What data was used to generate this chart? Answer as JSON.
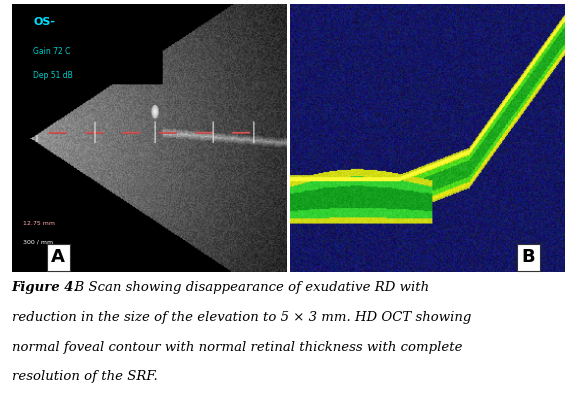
{
  "figure_width": 5.77,
  "figure_height": 3.94,
  "dpi": 100,
  "caption_line1": "Figure 4.  B Scan showing disappearance of exudative RD with",
  "caption_line2": "reduction in the size of the elevation to 5 × 3 mm. HD OCT showing",
  "caption_line3": "normal foveal contour with normal retinal thickness with complete",
  "caption_line4": "resolution of the SRF.",
  "label_A": "A",
  "label_B": "B",
  "background_color": "#ffffff",
  "caption_fontsize": 9.5,
  "label_fontsize": 13,
  "label_color": "#000000",
  "label_box_color": "#ffffff",
  "os_text": "OS-",
  "os_line1": "Gain 72 C",
  "os_line2": "Dep 51 dB",
  "meas_line1": "12.75 mm",
  "meas_line2": "300 / mm"
}
